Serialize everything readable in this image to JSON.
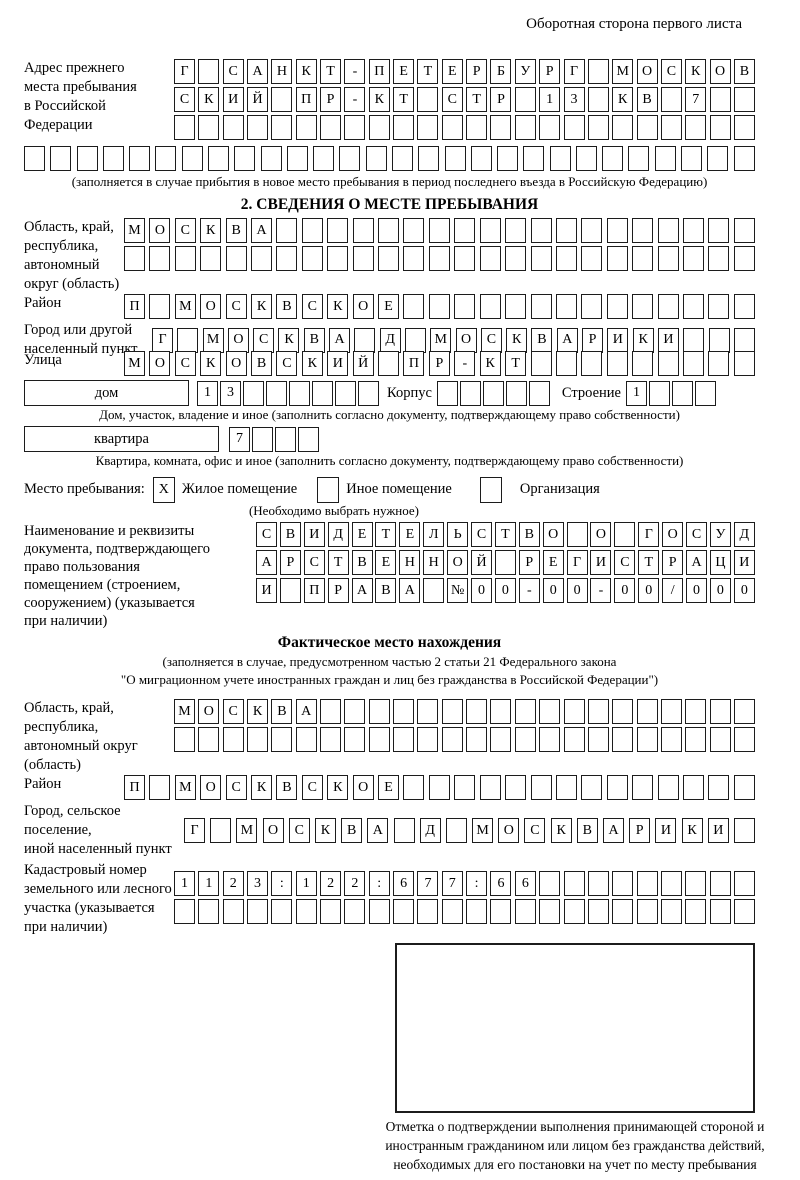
{
  "header": {
    "note": "Оборотная сторона первого листа"
  },
  "prev_address": {
    "label": "Адрес прежнего\nместа пребывания\nв Российской\nФедерации",
    "rows": [
      "Г САНКТ-ПЕТЕРБУРГ МОСКОВ",
      "СКИЙ ПР-КТ СТР 13 КВ 7  ",
      "                        "
    ],
    "overflow_row": "                            ",
    "note": "(заполняется в случае прибытия в новое место пребывания в период последнего въезда в Российскую Федерацию)"
  },
  "section2": {
    "title": "2. СВЕДЕНИЯ О МЕСТЕ ПРЕБЫВАНИЯ",
    "region": {
      "label": "Область, край,\nреспублика,\nавтономный\nокруг (область)",
      "rows": [
        "МОСКВА                   ",
        "                         "
      ]
    },
    "district": {
      "label": "Район",
      "row": "П МОСКВСКОЕ              "
    },
    "city": {
      "label": "Город или другой\nнаселенный пункт",
      "row": "Г МОСКВА Д МОСКВАРИКИ   "
    },
    "street": {
      "label": "Улица",
      "row": "МОСКОВСКИЙ ПР-КТ         "
    },
    "house": {
      "box_label": "дом",
      "cells": "13      ",
      "korpus_label": "Корпус",
      "korpus_cells": "     ",
      "stroenie_label": "Строение",
      "stroenie_cells": "1   ",
      "note": "Дом, участок, владение и иное (заполнить согласно документу, подтверждающему право собственности)"
    },
    "apartment": {
      "box_label": "квартира",
      "cells": "7   ",
      "note": "Квартира, комната, офис и иное (заполнить согласно документу, подтверждающему право собственности)"
    },
    "stay_type": {
      "label": "Место пребывания:",
      "options": [
        {
          "label": "Жилое помещение",
          "value": "X"
        },
        {
          "label": "Иное помещение",
          "value": " "
        },
        {
          "label": "Организация",
          "value": " "
        }
      ],
      "note": "(Необходимо выбрать нужное)"
    },
    "document": {
      "label": "Наименование и реквизиты\nдокумента, подтверждающего\nправо пользования\nпомещением (строением,\nсооружением) (указывается\nпри наличии)",
      "rows": [
        "СВИДЕТЕЛЬСТВО О ГОСУД",
        "АРСТВЕННОЙ РЕГИСТРАЦИ",
        "И ПРАВА №00-00-00/000"
      ]
    }
  },
  "section3": {
    "title": "Фактическое место нахождения",
    "note_line1": "(заполняется в случае, предусмотренном частью 2 статьи 21 Федерального закона",
    "note_line2": "\"О миграционном учете иностранных граждан и лиц без гражданства в Российской Федерации\")",
    "region": {
      "label": "Область, край,\nреспублика,\nавтономный округ\n(область)",
      "rows": [
        "МОСКВА                  ",
        "                        "
      ]
    },
    "district": {
      "label": "Район",
      "row": "П МОСКВСКОЕ              "
    },
    "city": {
      "label": "Город, сельское поселение,\nиной населенный пункт",
      "row": "Г МОСКВА Д МОСКВАРИКИ "
    },
    "cadastre": {
      "label": "Кадастровый номер\nземельного или лесного\nучастка (указывается\nпри наличии)",
      "rows": [
        "1123:122:677:66         ",
        "                        "
      ]
    }
  },
  "stamp": {
    "caption": "Отметка о подтверждении выполнения принимающей стороной и иностранным гражданином или лицом без гражданства действий, необходимых для его постановки на учет по месту пребывания"
  }
}
